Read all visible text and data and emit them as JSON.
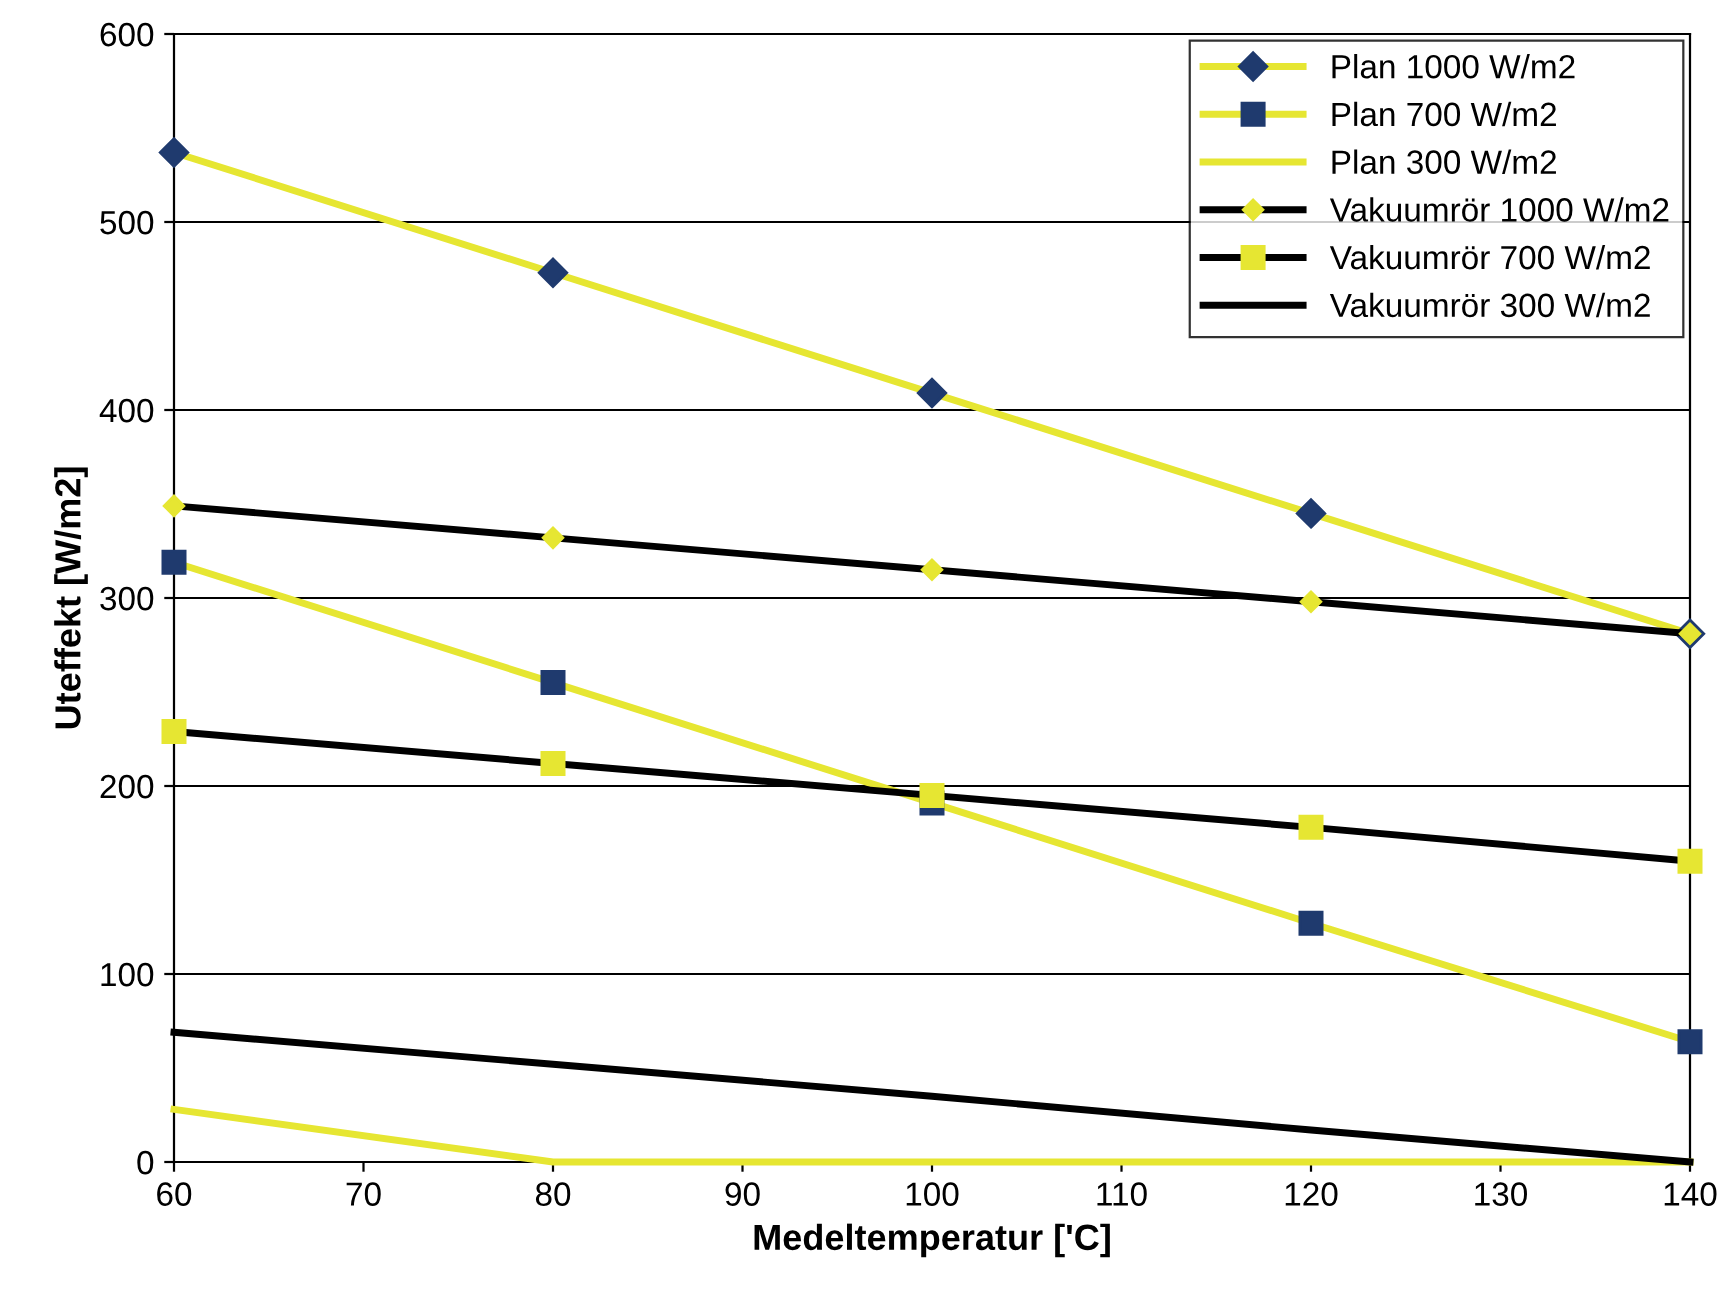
{
  "chart_data": {
    "type": "line",
    "xlabel": "Medeltemperatur ['C]",
    "ylabel": "Uteffekt [W/m2]",
    "x": [
      60,
      80,
      100,
      120,
      140
    ],
    "xlim": [
      60,
      140
    ],
    "xticks": [
      60,
      70,
      80,
      90,
      100,
      110,
      120,
      130,
      140
    ],
    "ylim": [
      0,
      600
    ],
    "yticks": [
      0,
      100,
      200,
      300,
      400,
      500,
      600
    ],
    "grid": "y",
    "legend": "top right",
    "series": [
      {
        "name": "Plan 1000 W/m2",
        "color": "#e6e632",
        "marker": "diamond",
        "colors": [
          "#1f3a6e",
          "#1f3a6e",
          "#1f3a6e",
          "#1f3a6e",
          "#1f3a6e"
        ],
        "values": [
          537,
          473,
          409,
          345,
          281
        ]
      },
      {
        "name": "Plan 700 W/m2",
        "color": "#e6e632",
        "marker": "square",
        "colors": [
          "#1f3a6e",
          "#1f3a6e",
          "#1f3a6e",
          "#1f3a6e",
          "#1f3a6e"
        ],
        "values": [
          319,
          255,
          191,
          127,
          64
        ]
      },
      {
        "name": "Plan 300 W/m2",
        "color": "#e6e632",
        "marker": "none",
        "values": [
          28,
          0,
          0,
          0,
          0
        ]
      },
      {
        "name": "Vakuumrör 1000 W/m2",
        "color": "#000000",
        "marker": "diamond",
        "colors": [
          "#e6e632",
          "#e6e632",
          "#e6e632",
          "#e6e632",
          "#e6e632"
        ],
        "values": [
          349,
          332,
          315,
          298,
          281
        ]
      },
      {
        "name": "Vakuumrör 700 W/m2",
        "color": "#000000",
        "marker": "square",
        "colors": [
          "#e6e632",
          "#e6e632",
          "#e6e632",
          "#e6e632",
          "#e6e632"
        ],
        "values": [
          229,
          212,
          195,
          178,
          160
        ]
      },
      {
        "name": "Vakuumrör 300 W/m2",
        "color": "#000000",
        "marker": "none",
        "values": [
          69,
          52,
          35,
          17,
          0
        ]
      }
    ]
  }
}
